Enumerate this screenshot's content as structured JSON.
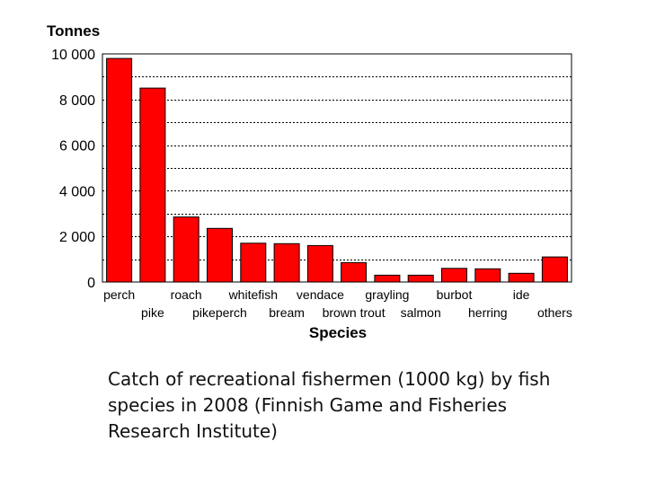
{
  "chart_data": {
    "type": "bar",
    "title": "",
    "ylabel": "Tonnes",
    "xlabel": "Species",
    "ylim": [
      0,
      10000
    ],
    "yticks": [
      0,
      2000,
      4000,
      6000,
      8000,
      10000
    ],
    "ytick_labels": [
      "0",
      "2 000",
      "4 000",
      "6 000",
      "8 000",
      "10 000"
    ],
    "grid": true,
    "categories": [
      "perch",
      "pike",
      "roach",
      "pikeperch",
      "whitefish",
      "bream",
      "vendace",
      "brown trout",
      "grayling",
      "salmon",
      "burbot",
      "herring",
      "ide",
      "others"
    ],
    "values": [
      9800,
      8500,
      2850,
      2350,
      1700,
      1680,
      1600,
      850,
      300,
      300,
      600,
      580,
      380,
      1100
    ],
    "bar_color": "#ff0000"
  },
  "caption": "Catch of recreational fishermen (1000 kg) by fish species in 2008 (Finnish Game and Fisheries Research Institute)"
}
